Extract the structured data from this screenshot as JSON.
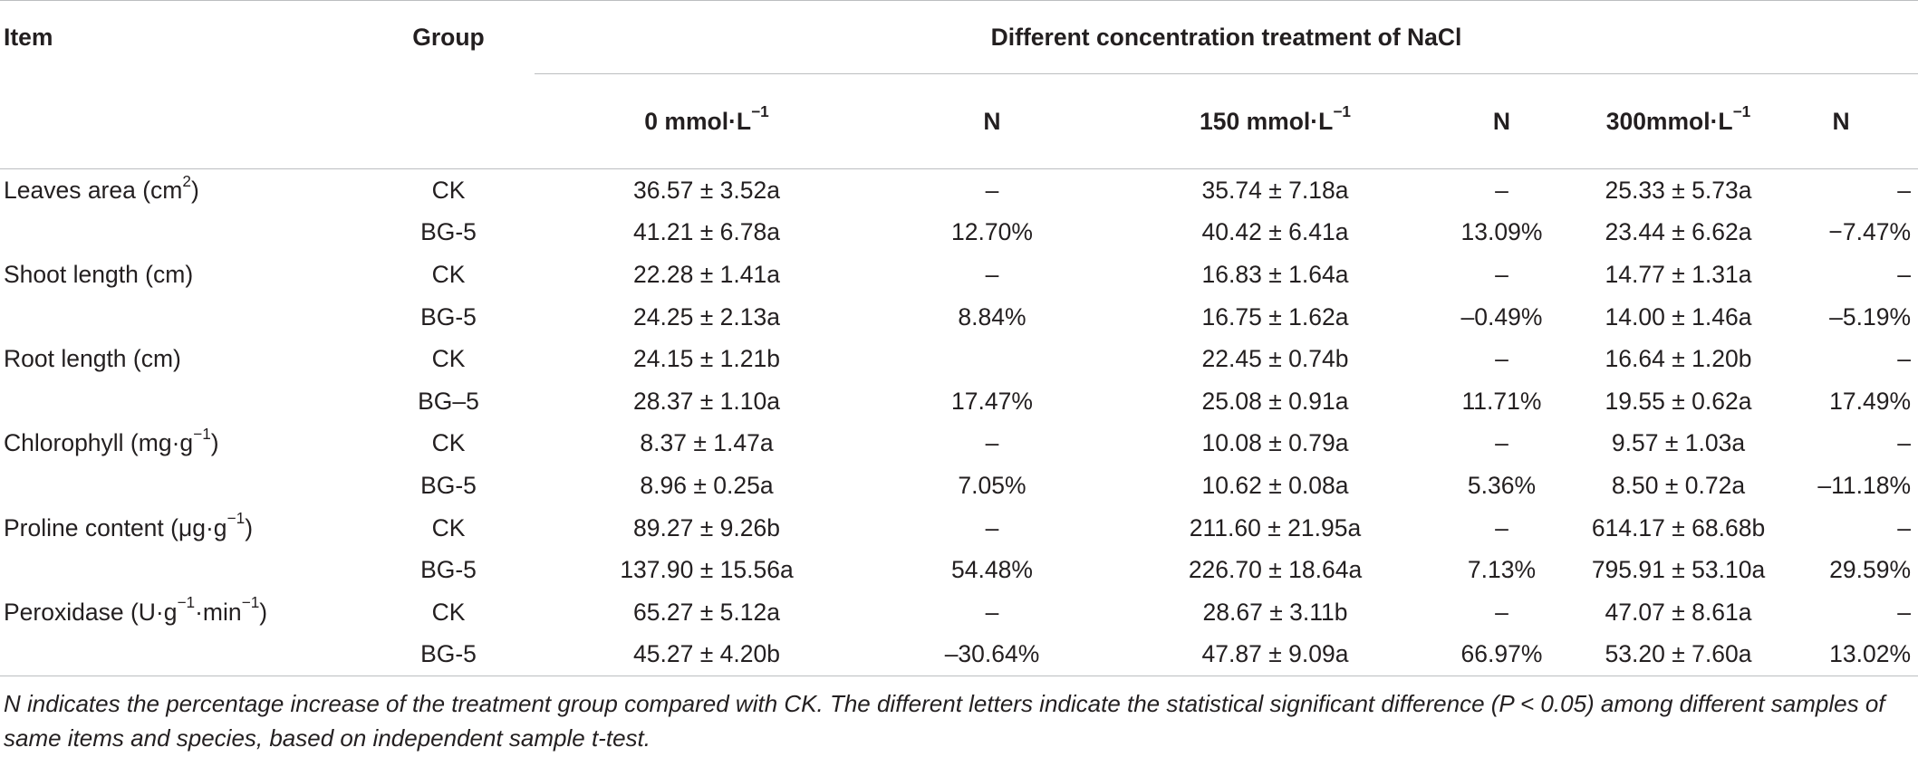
{
  "header": {
    "item": "Item",
    "group": "Group",
    "concentration": "Different concentration treatment of NaCl",
    "columns": [
      {
        "base": "0 mmol·L",
        "sup": "−1"
      },
      {
        "base": "N"
      },
      {
        "base": "150 mmol·L",
        "sup": "−1"
      },
      {
        "base": "N"
      },
      {
        "base": "300mmol·L",
        "sup": "−1"
      },
      {
        "base": "N"
      }
    ]
  },
  "rows": [
    {
      "item": {
        "base": "Leaves area (cm",
        "sup": "2",
        "tail": ")"
      },
      "group": "CK",
      "v0": "36.57 ± 3.52a",
      "n0": "–",
      "v150": "35.74 ± 7.18a",
      "n150": "–",
      "v300": "25.33 ± 5.73a",
      "n300": "–"
    },
    {
      "item": {
        "base": ""
      },
      "group": "BG-5",
      "v0": "41.21 ± 6.78a",
      "n0": "12.70%",
      "v150": "40.42 ± 6.41a",
      "n150": "13.09%",
      "v300": "23.44 ± 6.62a",
      "n300": "−7.47%"
    },
    {
      "item": {
        "base": "Shoot length (cm)"
      },
      "group": "CK",
      "v0": "22.28 ± 1.41a",
      "n0": "–",
      "v150": "16.83 ± 1.64a",
      "n150": "–",
      "v300": "14.77 ± 1.31a",
      "n300": "–"
    },
    {
      "item": {
        "base": ""
      },
      "group": "BG-5",
      "v0": "24.25 ± 2.13a",
      "n0": "8.84%",
      "v150": "16.75 ± 1.62a",
      "n150": "–0.49%",
      "v300": "14.00 ± 1.46a",
      "n300": "–5.19%"
    },
    {
      "item": {
        "base": "Root length (cm)"
      },
      "group": "CK",
      "v0": "24.15 ± 1.21b",
      "n0": "",
      "v150": "22.45 ± 0.74b",
      "n150": "–",
      "v300": "16.64 ± 1.20b",
      "n300": "–"
    },
    {
      "item": {
        "base": ""
      },
      "group": "BG–5",
      "v0": "28.37 ± 1.10a",
      "n0": "17.47%",
      "v150": "25.08 ± 0.91a",
      "n150": "11.71%",
      "v300": "19.55 ± 0.62a",
      "n300": "17.49%"
    },
    {
      "item": {
        "base": "Chlorophyll (mg·g",
        "sup": "−1",
        "tail": ")"
      },
      "group": "CK",
      "v0": "8.37 ± 1.47a",
      "n0": "–",
      "v150": "10.08 ± 0.79a",
      "n150": "–",
      "v300": "9.57 ± 1.03a",
      "n300": "–"
    },
    {
      "item": {
        "base": ""
      },
      "group": "BG-5",
      "v0": "8.96 ± 0.25a",
      "n0": "7.05%",
      "v150": "10.62 ± 0.08a",
      "n150": "5.36%",
      "v300": "8.50 ± 0.72a",
      "n300": "–11.18%"
    },
    {
      "item": {
        "base": "Proline content (μg·g",
        "sup": "−1",
        "tail": ")"
      },
      "group": "CK",
      "v0": "89.27 ± 9.26b",
      "n0": "–",
      "v150": "211.60 ± 21.95a",
      "n150": "–",
      "v300": "614.17 ± 68.68b",
      "n300": "–"
    },
    {
      "item": {
        "base": ""
      },
      "group": "BG-5",
      "v0": "137.90 ± 15.56a",
      "n0": "54.48%",
      "v150": "226.70 ± 18.64a",
      "n150": "7.13%",
      "v300": "795.91 ± 53.10a",
      "n300": "29.59%"
    },
    {
      "item": {
        "base": "Peroxidase (U·g",
        "sup": "−1",
        "tail": "·min",
        "sup2": "−1",
        "tail2": ")"
      },
      "group": "CK",
      "v0": "65.27 ± 5.12a",
      "n0": "–",
      "v150": "28.67 ± 3.11b",
      "n150": "–",
      "v300": "47.07 ± 8.61a",
      "n300": "–"
    },
    {
      "item": {
        "base": ""
      },
      "group": "BG-5",
      "v0": "45.27 ± 4.20b",
      "n0": "–30.64%",
      "v150": "47.87 ± 9.09a",
      "n150": "66.97%",
      "v300": "53.20 ± 7.60a",
      "n300": "13.02%"
    }
  ],
  "footnote": "N indicates the percentage increase of the treatment group compared with CK. The different letters indicate the statistical significant difference (P < 0.05) among different samples of same items and species, based on independent sample t-test."
}
